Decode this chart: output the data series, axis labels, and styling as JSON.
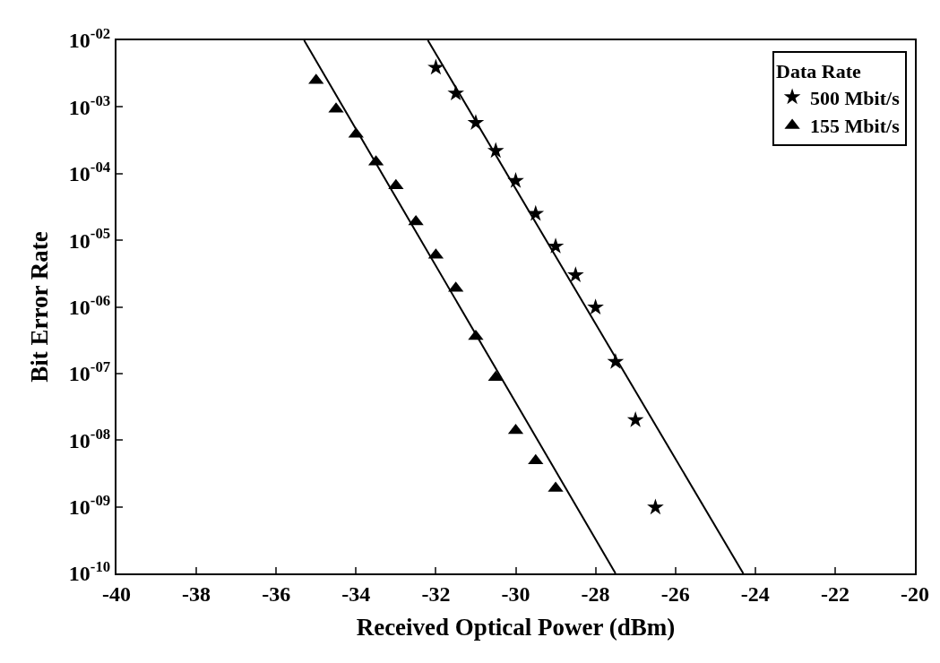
{
  "chart_data": {
    "type": "scatter",
    "xlabel": "Received Optical Power (dBm)",
    "ylabel": "Bit Error Rate",
    "legend_title": "Data Rate",
    "legend": "top right",
    "log": "y",
    "xlim": [
      -40,
      -20
    ],
    "xticks": [
      -40,
      -38,
      -36,
      -34,
      -32,
      -30,
      -28,
      -26,
      -24,
      -22,
      -20
    ],
    "ylim": [
      1e-10,
      0.01
    ],
    "yticks": [
      {
        "value": 1e-10,
        "label": "10$^{-10}$"
      },
      {
        "value": 1e-09,
        "label": "10$^{-09}$"
      },
      {
        "value": 1e-08,
        "label": "10$^{-08}$"
      },
      {
        "value": 1e-07,
        "label": "10$^{-07}$"
      },
      {
        "value": 1e-06,
        "label": "10$^{-06}$"
      },
      {
        "value": 1e-05,
        "label": "10$^{-05}$"
      },
      {
        "value": 0.0001,
        "label": "10$^{-04}$"
      },
      {
        "value": 0.001,
        "label": "10$^{-03}$"
      },
      {
        "value": 0.01,
        "label": "10$^{-02}$"
      }
    ],
    "series": [
      {
        "name": "500 Mbit/s",
        "marker": "star",
        "color": "#000000",
        "x": [
          -32,
          -31.5,
          -31,
          -30.5,
          -30,
          -29.5,
          -29,
          -28.5,
          -28,
          -27.5,
          -27,
          -26.5
        ],
        "values": [
          0.0039,
          0.0016,
          0.00058,
          0.00022,
          7.8e-05,
          2.5e-05,
          8.1e-06,
          3e-06,
          9.8e-07,
          1.5e-07,
          2e-08,
          9.8e-10
        ]
      },
      {
        "name": "155 Mbit/s",
        "marker": "triangle",
        "color": "#000000",
        "x": [
          -35,
          -34.5,
          -34,
          -33.5,
          -33,
          -32.5,
          -32,
          -31.5,
          -31,
          -30.5,
          -30,
          -29.5,
          -29
        ],
        "values": [
          0.0025,
          0.00093,
          0.00039,
          0.00015,
          6.6e-05,
          1.9e-05,
          6e-06,
          1.9e-06,
          3.6e-07,
          8.7e-08,
          1.4e-08,
          4.9e-09,
          1.9e-09
        ]
      },
      {
        "type": "line",
        "color": "#000000",
        "x": [
          -35.3,
          -27.5
        ],
        "values": [
          0.01,
          1e-10
        ]
      },
      {
        "type": "line",
        "color": "#000000",
        "x": [
          -32.2,
          -24.3
        ],
        "values": [
          0.01,
          1e-10
        ]
      }
    ]
  }
}
